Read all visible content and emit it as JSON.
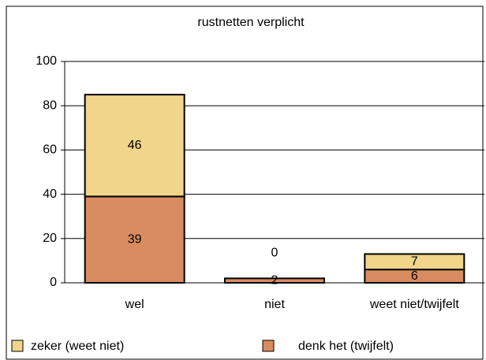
{
  "chart_data": {
    "type": "stacked_bar",
    "title": "rustnetten verplicht",
    "categories": [
      "wel",
      "niet",
      "weet niet/twijfelt"
    ],
    "series": [
      {
        "name": "denk het (twijfelt)",
        "color": "#d98c5f",
        "values": [
          39,
          2,
          6
        ]
      },
      {
        "name": "zeker (weet niet)",
        "color": "#f0d58a",
        "values": [
          46,
          0,
          7
        ]
      }
    ],
    "ylim": [
      0,
      100
    ],
    "yticks": [
      0,
      20,
      40,
      60,
      80,
      100
    ],
    "grid": true,
    "legend": "bottom"
  }
}
